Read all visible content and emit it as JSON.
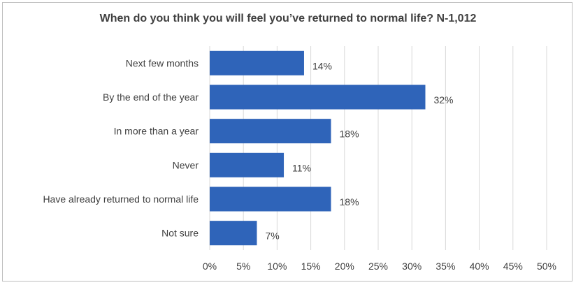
{
  "chart_data": {
    "type": "bar",
    "orientation": "horizontal",
    "title": "When do you think you will feel you’ve returned to normal life? N-1,012",
    "categories": [
      "Next few months",
      "By the end of the year",
      "In more than a year",
      "Never",
      "Have already returned to normal life",
      "Not sure"
    ],
    "values": [
      14,
      32,
      18,
      11,
      18,
      7
    ],
    "data_labels": [
      "14%",
      "32%",
      "18%",
      "11%",
      "18%",
      "7%"
    ],
    "xlim": [
      0,
      50
    ],
    "x_ticks": [
      0,
      5,
      10,
      15,
      20,
      25,
      30,
      35,
      40,
      45,
      50
    ],
    "x_tick_labels": [
      "0%",
      "5%",
      "10%",
      "15%",
      "20%",
      "25%",
      "30%",
      "35%",
      "40%",
      "45%",
      "50%"
    ],
    "grid": "vertical",
    "legend": "none",
    "bar_color": "#2f64b9",
    "grid_color": "#d9d9d9",
    "text_color": "#404040"
  }
}
